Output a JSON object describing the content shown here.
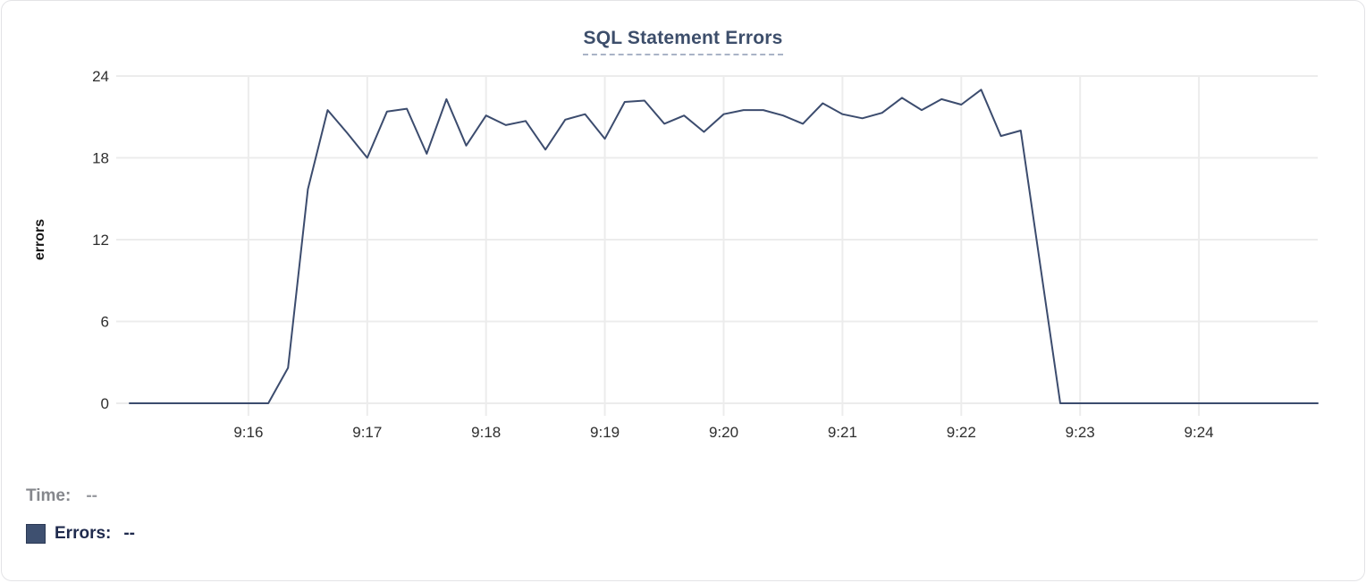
{
  "card": {
    "title": "SQL Statement Errors"
  },
  "tooltip": {
    "time_label": "Time:",
    "time_value": "--",
    "errors_label": "Errors:",
    "errors_value": "--"
  },
  "colors": {
    "line": "#3c4c6e",
    "title": "#3d4e6b",
    "title_underline": "#a9b3c6",
    "swatch": "#3e5070",
    "swatch_border": "#2c3a55",
    "time_text": "#85878c",
    "errors_text": "#1f2a4d",
    "grid": "#ececec",
    "tick_text": "#2e2e2e"
  },
  "chart_data": {
    "type": "line",
    "title": "SQL Statement Errors",
    "xlabel": "",
    "ylabel": "errors",
    "ylim": [
      0,
      24
    ],
    "y_ticks": [
      0,
      6,
      12,
      18,
      24
    ],
    "x_domain_seconds": [
      0,
      600
    ],
    "x_domain_time": [
      "9:15:00",
      "9:25:00"
    ],
    "x_ticks": [
      {
        "label": "9:16",
        "t": 60
      },
      {
        "label": "9:17",
        "t": 120
      },
      {
        "label": "9:18",
        "t": 180
      },
      {
        "label": "9:19",
        "t": 240
      },
      {
        "label": "9:20",
        "t": 300
      },
      {
        "label": "9:21",
        "t": 360
      },
      {
        "label": "9:22",
        "t": 420
      },
      {
        "label": "9:23",
        "t": 480
      },
      {
        "label": "9:24",
        "t": 540
      }
    ],
    "grid": true,
    "legend_position": "bottom-left",
    "series": [
      {
        "name": "Errors",
        "color": "#3c4c6e",
        "t_seconds": [
          0,
          10,
          20,
          30,
          40,
          50,
          60,
          70,
          80,
          90,
          100,
          110,
          120,
          130,
          140,
          150,
          160,
          170,
          180,
          190,
          200,
          210,
          220,
          230,
          240,
          250,
          260,
          270,
          280,
          290,
          300,
          310,
          320,
          330,
          340,
          350,
          360,
          370,
          380,
          390,
          400,
          410,
          420,
          430,
          440,
          450,
          460,
          470,
          480,
          490,
          500,
          510,
          520,
          530,
          540,
          550,
          560,
          570,
          580,
          590,
          600
        ],
        "values": [
          0,
          0,
          0,
          0,
          0,
          0,
          0,
          0,
          2.6,
          15.7,
          21.5,
          19.8,
          18,
          21.4,
          21.6,
          18.3,
          22.3,
          18.9,
          21.1,
          20.4,
          20.7,
          18.6,
          20.8,
          21.2,
          19.4,
          22.1,
          22.2,
          20.5,
          21.1,
          19.9,
          21.2,
          21.5,
          21.5,
          21.1,
          20.5,
          22,
          21.2,
          20.9,
          21.3,
          22.4,
          21.5,
          22.3,
          21.9,
          23,
          19.6,
          20,
          10,
          0,
          0,
          0,
          0,
          0,
          0,
          0,
          0,
          0,
          0,
          0,
          0,
          0,
          0
        ]
      }
    ]
  }
}
